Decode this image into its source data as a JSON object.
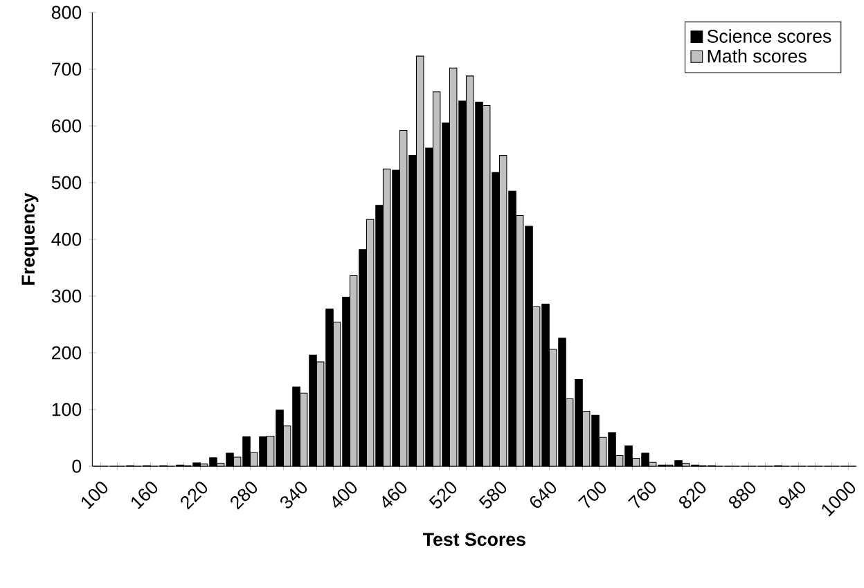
{
  "chart_data": {
    "type": "bar",
    "xlabel": "Test Scores",
    "ylabel": "Frequency",
    "categories": [
      "100",
      null,
      null,
      "160",
      null,
      null,
      "220",
      null,
      null,
      "280",
      null,
      null,
      "340",
      null,
      null,
      "400",
      null,
      null,
      "460",
      null,
      null,
      "520",
      null,
      null,
      "580",
      null,
      null,
      "640",
      null,
      null,
      "700",
      null,
      null,
      "760",
      null,
      null,
      "820",
      null,
      null,
      "880",
      null,
      null,
      "940",
      null,
      null,
      "1000"
    ],
    "series": [
      {
        "name": "Science scores",
        "color": "#000000",
        "values": [
          0,
          0,
          1,
          1,
          1,
          2,
          6,
          15,
          23,
          52,
          52,
          99,
          140,
          196,
          277,
          298,
          382,
          460,
          522,
          548,
          561,
          605,
          644,
          642,
          518,
          485,
          423,
          286,
          226,
          153,
          90,
          59,
          36,
          23,
          2,
          10,
          2,
          1,
          0,
          0,
          0,
          1,
          0,
          0,
          0,
          0
        ]
      },
      {
        "name": "Math scores",
        "color": "#c0c0c0",
        "values": [
          0,
          0,
          0,
          0,
          0,
          1,
          4,
          5,
          16,
          24,
          53,
          71,
          129,
          184,
          254,
          336,
          435,
          524,
          592,
          723,
          660,
          702,
          688,
          636,
          548,
          442,
          281,
          206,
          119,
          97,
          51,
          19,
          14,
          7,
          2,
          5,
          1,
          0,
          0,
          0,
          0,
          0,
          0,
          0,
          0,
          0
        ]
      }
    ],
    "ylim": [
      0,
      800
    ],
    "yticks": [
      0,
      100,
      200,
      300,
      400,
      500,
      600,
      700,
      800
    ],
    "legend": "top right"
  }
}
